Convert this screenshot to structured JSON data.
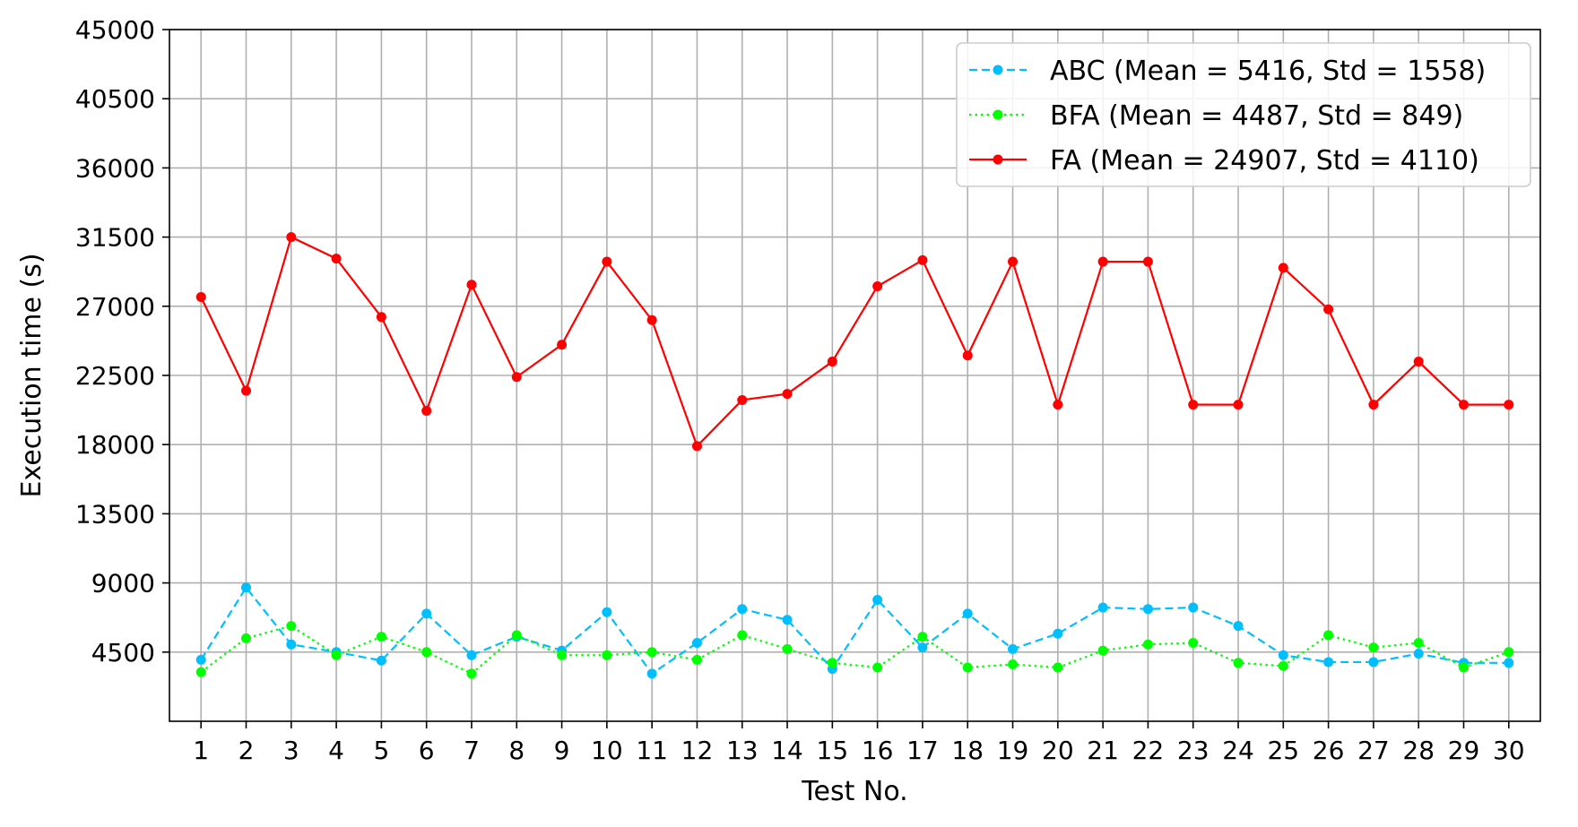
{
  "chart_data": {
    "type": "line",
    "title": "",
    "xlabel": "Test No.",
    "ylabel": "Execution time (s)",
    "x": [
      1,
      2,
      3,
      4,
      5,
      6,
      7,
      8,
      9,
      10,
      11,
      12,
      13,
      14,
      15,
      16,
      17,
      18,
      19,
      20,
      21,
      22,
      23,
      24,
      25,
      26,
      27,
      28,
      29,
      30
    ],
    "ylim": [
      0,
      45000
    ],
    "yticks": [
      4500,
      9000,
      13500,
      18000,
      22500,
      27000,
      31500,
      36000,
      40500,
      45000
    ],
    "grid": true,
    "legend_position": "top-right",
    "series": [
      {
        "name": "ABC (Mean = 5416, Std = 1558)",
        "color": "#00bfff",
        "line_style": "dashed",
        "marker": "circle",
        "values": [
          4000,
          8700,
          5000,
          4500,
          3950,
          7000,
          4300,
          5500,
          4600,
          7100,
          3100,
          5100,
          7300,
          6600,
          3400,
          7900,
          4800,
          7000,
          4700,
          5700,
          7400,
          7300,
          7400,
          6200,
          4300,
          3850,
          3850,
          4400,
          3800,
          3800
        ]
      },
      {
        "name": "BFA (Mean = 4487, Std = 849)",
        "color": "#00ff00",
        "line_style": "dotted",
        "marker": "circle",
        "values": [
          3200,
          5400,
          6200,
          4300,
          5500,
          4500,
          3100,
          5600,
          4300,
          4300,
          4500,
          4000,
          5600,
          4700,
          3800,
          3500,
          5500,
          3500,
          3700,
          3500,
          4600,
          5000,
          5100,
          3800,
          3600,
          5600,
          4800,
          5100,
          3500,
          4500
        ]
      },
      {
        "name": "FA (Mean = 24907, Std = 4110)",
        "color": "#ff0000",
        "line_style": "solid",
        "marker": "circle",
        "values": [
          27600,
          21500,
          31500,
          30100,
          26300,
          20200,
          28400,
          22400,
          24500,
          29900,
          26100,
          17900,
          20900,
          21300,
          23400,
          28300,
          30000,
          23800,
          29900,
          20600,
          29900,
          29900,
          20600,
          20600,
          29500,
          26800,
          20600,
          23400,
          20600,
          20600
        ]
      }
    ]
  }
}
